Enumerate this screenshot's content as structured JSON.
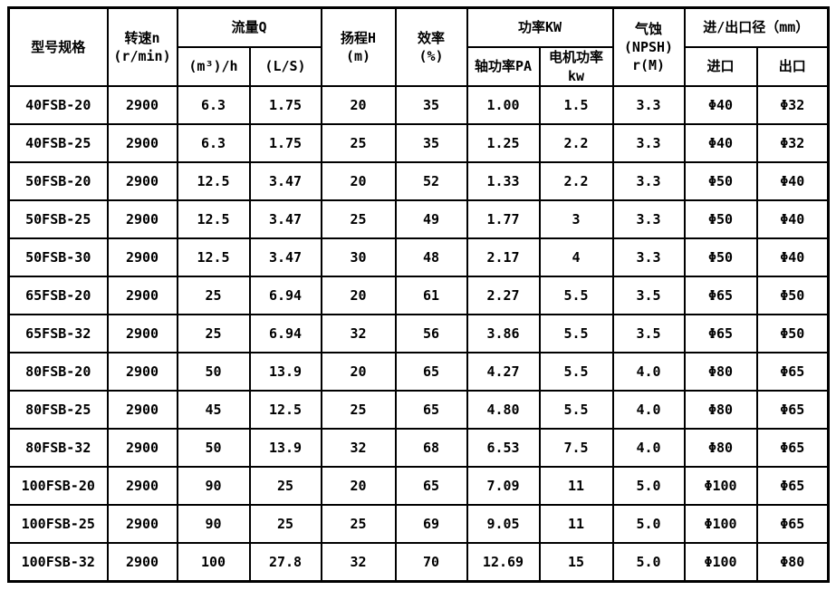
{
  "table": {
    "header": {
      "model": "型号规格",
      "speed": "转速n\n(r/min)",
      "flow": "流量Q",
      "flow_m3h": "(m³)/h",
      "flow_ls": "(L/S)",
      "head": "扬程H\n(m)",
      "efficiency": "效率\n(%)",
      "power": "功率KW",
      "shaft_power": "轴功率PA",
      "motor_power": "电机功率\nkw",
      "npsh": "气蚀\n(NPSH)\nr(M)",
      "inlet_outlet": "进/出口径（mm）",
      "inlet": "进口",
      "outlet": "出口"
    },
    "rows": [
      [
        "40FSB-20",
        "2900",
        "6.3",
        "1.75",
        "20",
        "35",
        "1.00",
        "1.5",
        "3.3",
        "Φ40",
        "Φ32"
      ],
      [
        "40FSB-25",
        "2900",
        "6.3",
        "1.75",
        "25",
        "35",
        "1.25",
        "2.2",
        "3.3",
        "Φ40",
        "Φ32"
      ],
      [
        "50FSB-20",
        "2900",
        "12.5",
        "3.47",
        "20",
        "52",
        "1.33",
        "2.2",
        "3.3",
        "Φ50",
        "Φ40"
      ],
      [
        "50FSB-25",
        "2900",
        "12.5",
        "3.47",
        "25",
        "49",
        "1.77",
        "3",
        "3.3",
        "Φ50",
        "Φ40"
      ],
      [
        "50FSB-30",
        "2900",
        "12.5",
        "3.47",
        "30",
        "48",
        "2.17",
        "4",
        "3.3",
        "Φ50",
        "Φ40"
      ],
      [
        "65FSB-20",
        "2900",
        "25",
        "6.94",
        "20",
        "61",
        "2.27",
        "5.5",
        "3.5",
        "Φ65",
        "Φ50"
      ],
      [
        "65FSB-32",
        "2900",
        "25",
        "6.94",
        "32",
        "56",
        "3.86",
        "5.5",
        "3.5",
        "Φ65",
        "Φ50"
      ],
      [
        "80FSB-20",
        "2900",
        "50",
        "13.9",
        "20",
        "65",
        "4.27",
        "5.5",
        "4.0",
        "Φ80",
        "Φ65"
      ],
      [
        "80FSB-25",
        "2900",
        "45",
        "12.5",
        "25",
        "65",
        "4.80",
        "5.5",
        "4.0",
        "Φ80",
        "Φ65"
      ],
      [
        "80FSB-32",
        "2900",
        "50",
        "13.9",
        "32",
        "68",
        "6.53",
        "7.5",
        "4.0",
        "Φ80",
        "Φ65"
      ],
      [
        "100FSB-20",
        "2900",
        "90",
        "25",
        "20",
        "65",
        "7.09",
        "11",
        "5.0",
        "Φ100",
        "Φ65"
      ],
      [
        "100FSB-25",
        "2900",
        "90",
        "25",
        "25",
        "69",
        "9.05",
        "11",
        "5.0",
        "Φ100",
        "Φ65"
      ],
      [
        "100FSB-32",
        "2900",
        "100",
        "27.8",
        "32",
        "70",
        "12.69",
        "15",
        "5.0",
        "Φ100",
        "Φ80"
      ]
    ]
  }
}
